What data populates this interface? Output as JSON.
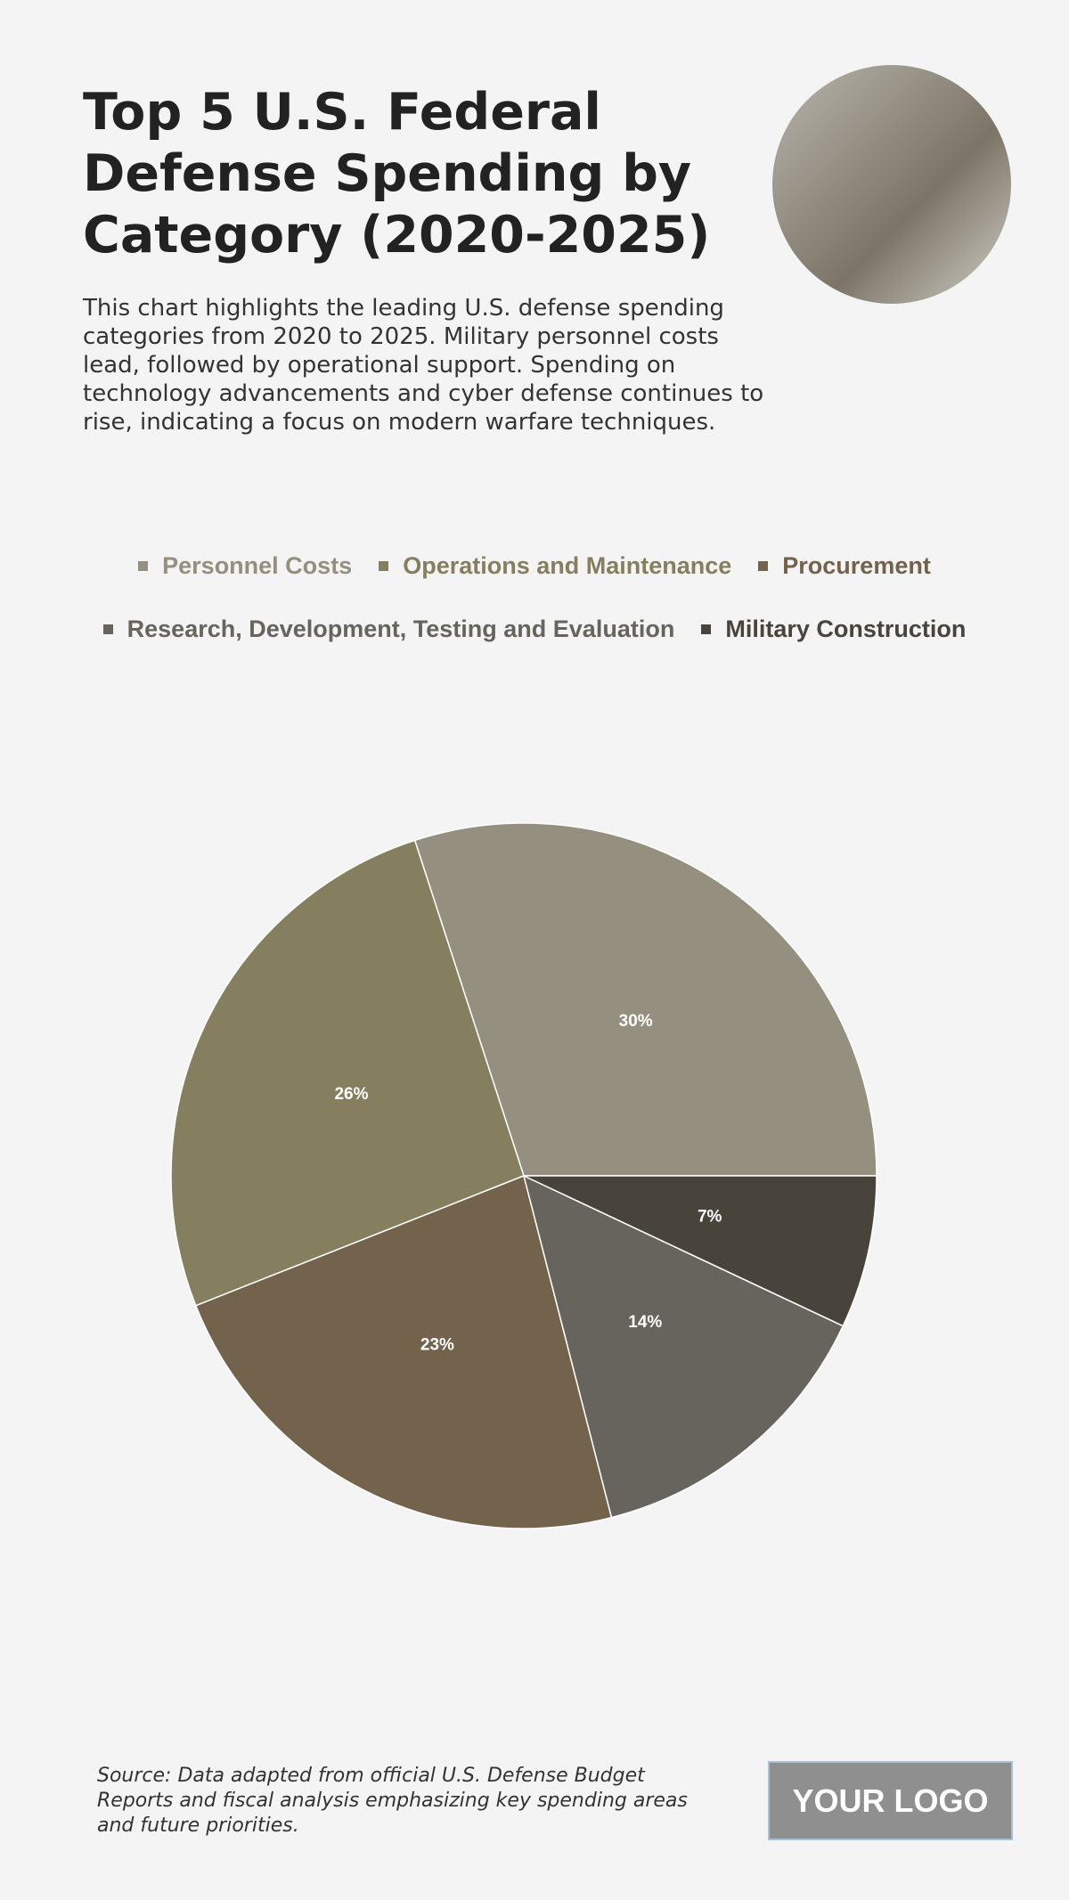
{
  "chart_data": {
    "type": "pie",
    "title": "Top 5 U.S. Federal Defense Spending by Category (2020-2025)",
    "subtitle": "This chart highlights the leading U.S. defense spending categories from 2020 to 2025. Military personnel costs lead, followed by operational support. Spending on technology advancements and cyber defense continues to rise, indicating a focus on modern warfare techniques.",
    "categories": [
      "Personnel Costs",
      "Operations and Maintenance",
      "Procurement",
      "Research, Development, Testing and Evaluation",
      "Military Construction"
    ],
    "values": [
      30,
      26,
      23,
      14,
      7
    ],
    "value_labels": [
      "30%",
      "26%",
      "23%",
      "14%",
      "7%"
    ],
    "colors": [
      "#948f7f",
      "#857f5f",
      "#73624c",
      "#66645c",
      "#48443c"
    ],
    "source": "Source: Data adapted from official U.S. Defense Budget Reports and fiscal analysis emphasizing key spending areas and future priorities."
  },
  "logo": "YOUR LOGO"
}
